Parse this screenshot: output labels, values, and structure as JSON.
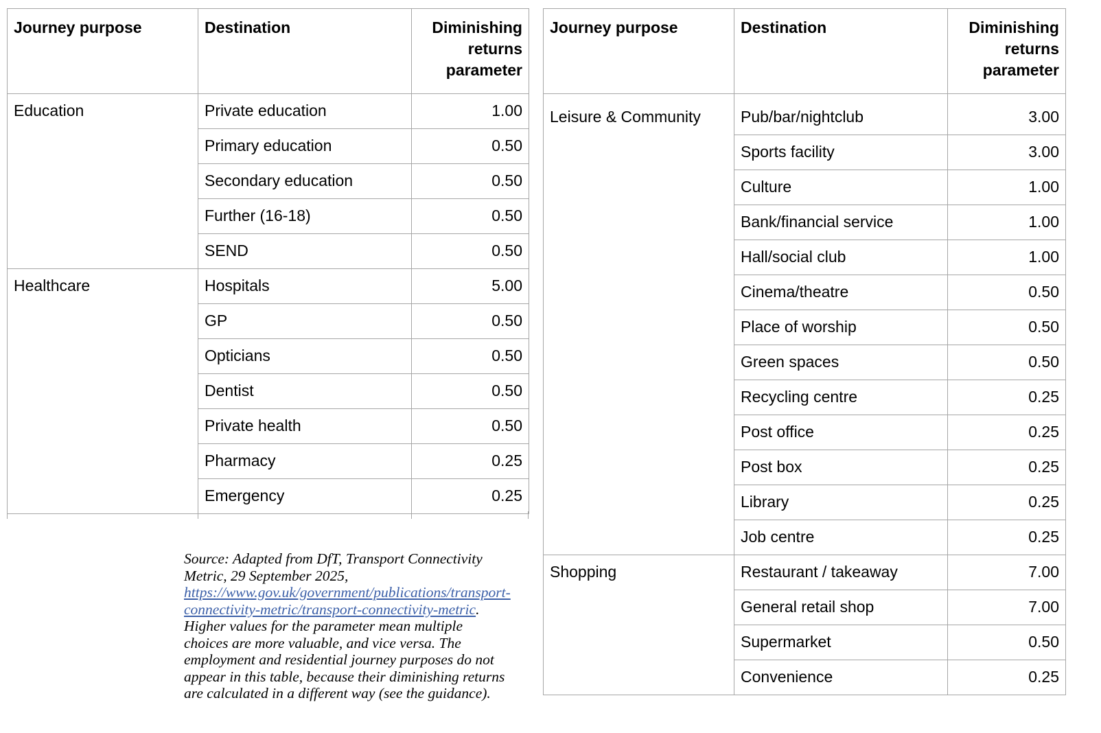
{
  "headers": {
    "purpose": "Journey purpose",
    "destination": "Destination",
    "parameter": "Diminishing returns parameter"
  },
  "left_table": [
    {
      "purpose": "Education",
      "rows": [
        {
          "destination": "Private education",
          "value": "1.00"
        },
        {
          "destination": "Primary education",
          "value": "0.50"
        },
        {
          "destination": "Secondary education",
          "value": "0.50"
        },
        {
          "destination": "Further (16-18)",
          "value": "0.50"
        },
        {
          "destination": "SEND",
          "value": "0.50"
        }
      ]
    },
    {
      "purpose": "Healthcare",
      "rows": [
        {
          "destination": "Hospitals",
          "value": "5.00"
        },
        {
          "destination": "GP",
          "value": "0.50"
        },
        {
          "destination": "Opticians",
          "value": "0.50"
        },
        {
          "destination": "Dentist",
          "value": "0.50"
        },
        {
          "destination": "Private health",
          "value": "0.50"
        },
        {
          "destination": "Pharmacy",
          "value": "0.25"
        },
        {
          "destination": "Emergency",
          "value": "0.25"
        }
      ]
    }
  ],
  "right_table": [
    {
      "purpose": "Leisure & Community",
      "rows": [
        {
          "destination": "Pub/bar/nightclub",
          "value": "3.00"
        },
        {
          "destination": "Sports facility",
          "value": "3.00"
        },
        {
          "destination": "Culture",
          "value": "1.00"
        },
        {
          "destination": "Bank/financial service",
          "value": "1.00"
        },
        {
          "destination": "Hall/social club",
          "value": "1.00"
        },
        {
          "destination": "Cinema/theatre",
          "value": "0.50"
        },
        {
          "destination": "Place of worship",
          "value": "0.50"
        },
        {
          "destination": "Green spaces",
          "value": "0.50"
        },
        {
          "destination": "Recycling centre",
          "value": "0.25"
        },
        {
          "destination": "Post office",
          "value": "0.25"
        },
        {
          "destination": "Post box",
          "value": "0.25"
        },
        {
          "destination": "Library",
          "value": "0.25"
        },
        {
          "destination": "Job centre",
          "value": "0.25"
        }
      ]
    },
    {
      "purpose": "Shopping",
      "rows": [
        {
          "destination": "Restaurant / takeaway",
          "value": "7.00"
        },
        {
          "destination": "General retail shop",
          "value": "7.00"
        },
        {
          "destination": "Supermarket",
          "value": "0.50"
        },
        {
          "destination": "Convenience",
          "value": "0.25"
        }
      ]
    }
  ],
  "note": {
    "before": "Source: Adapted from DfT, Transport Connectivity Metric, 29 September 2025, ",
    "link": "https://www.gov.uk/government/publications/transport-connectivity-metric/transport-connectivity-metric",
    "after": ". Higher values for the parameter mean multiple choices are more valuable, and vice versa. The employment and residential journey purposes do not appear in this table, because their diminishing returns are calculated in a different way (see the guidance)."
  }
}
